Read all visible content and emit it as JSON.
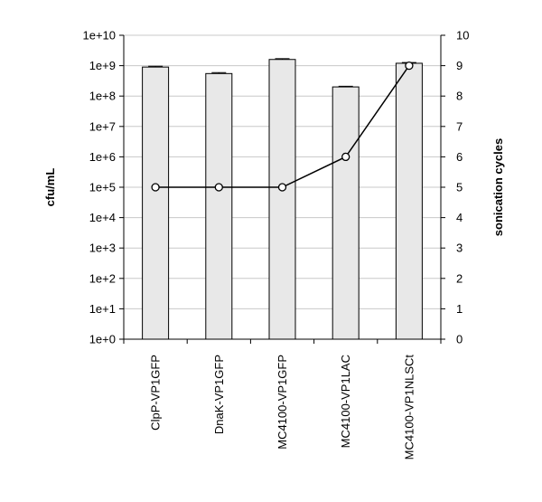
{
  "chart_data": {
    "type": "bar",
    "categories": [
      "ClpP-VP1GFP",
      "DnaK-VP1GFP",
      "MC4100-VP1GFP",
      "MC4100-VP1LAC",
      "MC4100-VP1NLSCt"
    ],
    "series": [
      {
        "axis": "left",
        "type": "bar",
        "values": [
          900000000,
          550000000,
          1600000000,
          200000000,
          1200000000
        ],
        "error": [
          60000000,
          40000000,
          100000000,
          10000000,
          70000000
        ],
        "color": "#e8e8e8",
        "edge_color": "#000000"
      },
      {
        "axis": "right",
        "type": "line",
        "values": [
          5,
          5,
          5,
          6,
          9
        ],
        "color": "#000000",
        "marker": "open-circle"
      }
    ],
    "ylabel": "cfu/mL",
    "y2label": "sonication cycles",
    "xlabel": "",
    "yscale": "log",
    "ylim": [
      1,
      10000000000
    ],
    "y2lim": [
      0,
      10
    ],
    "ytick_labels": [
      "1e+0",
      "1e+1",
      "1e+2",
      "1e+3",
      "1e+4",
      "1e+5",
      "1e+6",
      "1e+7",
      "1e+8",
      "1e+9",
      "1e+10"
    ],
    "y2tick_labels": [
      "0",
      "1",
      "2",
      "3",
      "4",
      "5",
      "6",
      "7",
      "8",
      "9",
      "10"
    ],
    "grid": true,
    "legend": "none"
  }
}
